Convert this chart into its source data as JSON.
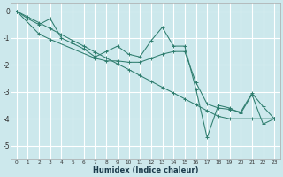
{
  "xlabel": "Humidex (Indice chaleur)",
  "background_color": "#cce8ec",
  "grid_color": "#ffffff",
  "line_color": "#2e7d6e",
  "xlim": [
    -0.5,
    23.5
  ],
  "ylim": [
    -5.5,
    0.3
  ],
  "yticks": [
    0,
    -1,
    -2,
    -3,
    -4,
    -5
  ],
  "xticks": [
    0,
    1,
    2,
    3,
    4,
    5,
    6,
    7,
    8,
    9,
    10,
    11,
    12,
    13,
    14,
    15,
    16,
    17,
    18,
    19,
    20,
    21,
    22,
    23
  ],
  "series": [
    {
      "x": [
        0,
        1,
        2,
        3,
        4,
        5,
        6,
        7,
        8,
        9,
        10,
        11,
        12,
        13,
        14,
        15,
        16,
        17,
        18,
        19,
        20,
        21,
        22,
        23
      ],
      "y": [
        0.0,
        -0.22,
        -0.43,
        -0.65,
        -0.87,
        -1.09,
        -1.3,
        -1.52,
        -1.74,
        -1.96,
        -2.17,
        -2.39,
        -2.61,
        -2.83,
        -3.04,
        -3.26,
        -3.48,
        -3.7,
        -3.91,
        -4.0,
        -4.0,
        -4.0,
        -4.0,
        -4.0
      ]
    },
    {
      "comment": "Zigzag line: starts 0,0, goes to 3:-0.3 high, 7:-1.7, 8:-1.5, then 13:-0.6 peak, 14:-1.3, 16:-2.9, 17:-4.7 dip, 18:-3.5, 19:-3.6, 20:-3.8, 21:-3.1, 22:-4.2, 23:-4.0",
      "x": [
        0,
        1,
        2,
        3,
        4,
        5,
        6,
        7,
        8,
        9,
        10,
        11,
        12,
        13,
        14,
        15,
        16,
        17,
        18,
        19,
        20,
        21,
        22,
        23
      ],
      "y": [
        0.0,
        -0.28,
        -0.5,
        -0.28,
        -1.0,
        -1.2,
        -1.4,
        -1.7,
        -1.5,
        -1.3,
        -1.6,
        -1.7,
        -1.1,
        -0.6,
        -1.3,
        -1.3,
        -2.9,
        -4.7,
        -3.5,
        -3.6,
        -3.8,
        -3.1,
        -4.2,
        -4.0
      ]
    },
    {
      "x": [
        0,
        2,
        3,
        7,
        8,
        9,
        10,
        11,
        12,
        13,
        14,
        15,
        16,
        17,
        18,
        19,
        20,
        21,
        22,
        23
      ],
      "y": [
        0.0,
        -0.85,
        -1.05,
        -1.75,
        -1.85,
        -1.85,
        -1.9,
        -1.9,
        -1.75,
        -1.6,
        -1.5,
        -1.5,
        -2.65,
        -3.45,
        -3.6,
        -3.65,
        -3.75,
        -3.05,
        -3.55,
        -4.0
      ]
    }
  ]
}
